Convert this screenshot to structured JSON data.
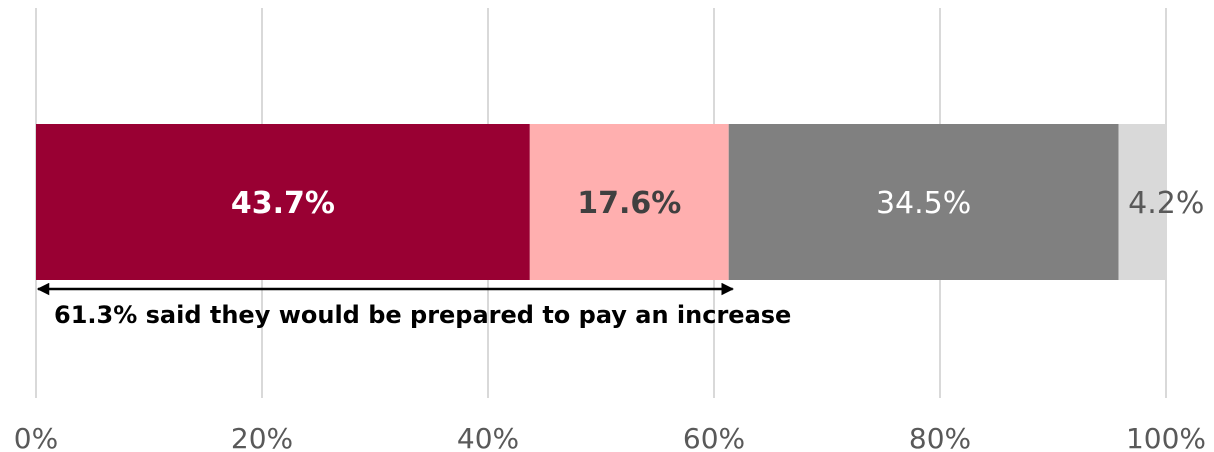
{
  "chart_data": {
    "type": "bar",
    "orientation": "horizontal",
    "stacked": true,
    "xlim": [
      0,
      100
    ],
    "x_ticks": [
      0,
      20,
      40,
      60,
      80,
      100
    ],
    "x_tick_labels": [
      "0%",
      "20%",
      "40%",
      "60%",
      "80%",
      "100%"
    ],
    "grid": true,
    "segments": [
      {
        "value": 43.7,
        "label": "43.7%",
        "color": "#990033",
        "label_color": "#ffffff",
        "label_bold": true
      },
      {
        "value": 17.6,
        "label": "17.6%",
        "color": "#ffafaf",
        "label_color": "#404040",
        "label_bold": true
      },
      {
        "value": 34.5,
        "label": "34.5%",
        "color": "#808080",
        "label_color": "#ffffff",
        "label_bold": false
      },
      {
        "value": 4.2,
        "label": "4.2%",
        "color": "#d9d9d9",
        "label_color": "#595959",
        "label_bold": false
      }
    ],
    "annotation": {
      "text": "61.3% said they would be prepared to pay an increase",
      "from": 0,
      "to": 61.3
    }
  }
}
